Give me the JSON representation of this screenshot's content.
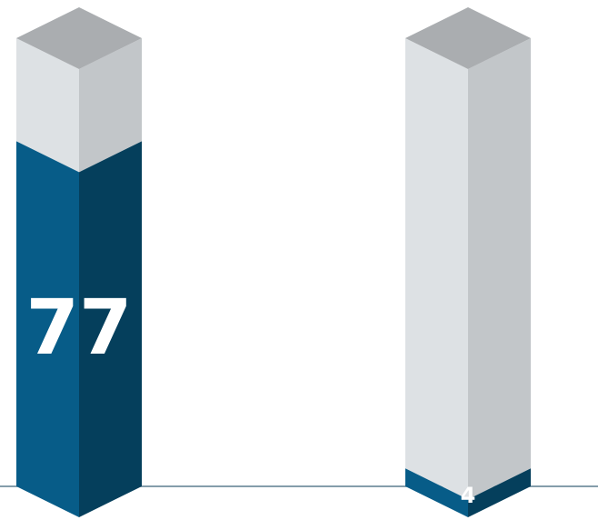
{
  "chart_data": {
    "type": "bar",
    "values": [
      77,
      4
    ],
    "ylim": [
      0,
      100
    ],
    "color": "#075c88",
    "track_color": "#dde1e4"
  }
}
